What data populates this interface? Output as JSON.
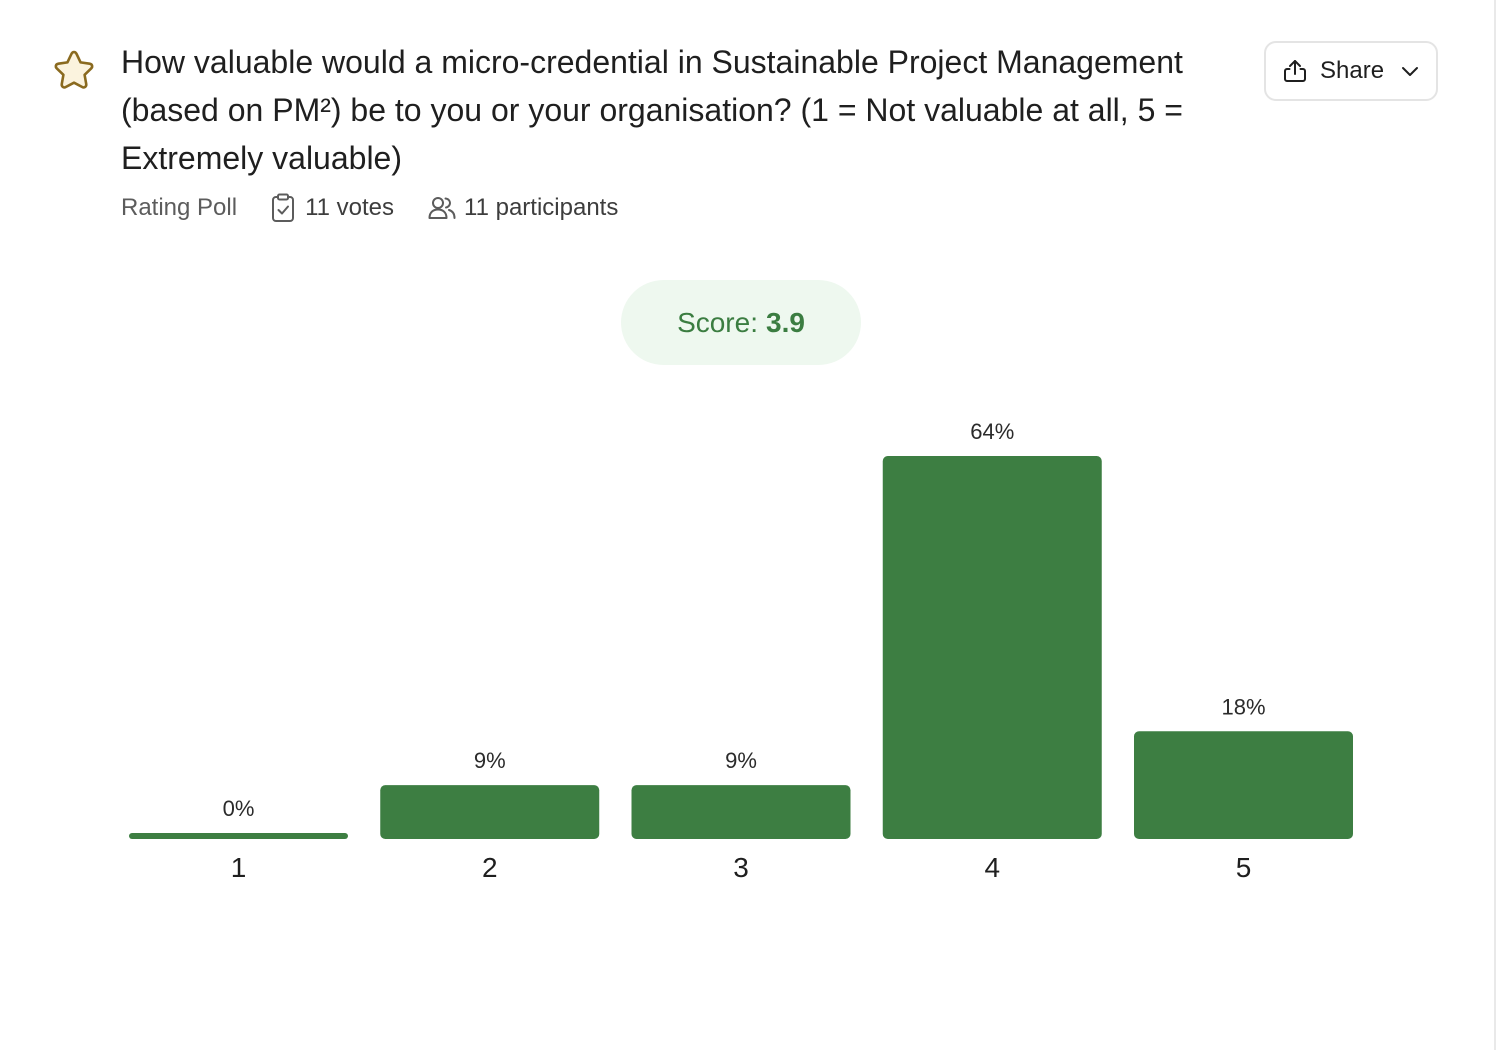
{
  "poll": {
    "title": "How valuable would a micro-credential in Sustainable Project Management (based on PM²) be to you or your organisation? (1 = Not valuable at all, 5 = Extremely valuable)",
    "type_label": "Rating Poll",
    "votes_label": "11 votes",
    "participants_label": "11 participants",
    "star_icon": "star-icon",
    "votes_icon": "clipboard-check-icon",
    "participants_icon": "users-icon"
  },
  "share": {
    "label": "Share",
    "icon": "share-icon",
    "chevron_icon": "chevron-down-icon"
  },
  "score": {
    "label": "Score:",
    "value": "3.9"
  },
  "colors": {
    "bar": "#3d7e42",
    "accent_star": "#8a6a1f",
    "badge_bg": "#eef8ef",
    "badge_text": "#3b7d41"
  },
  "chart_data": {
    "type": "bar",
    "categories": [
      "1",
      "2",
      "3",
      "4",
      "5"
    ],
    "values": [
      0,
      9,
      9,
      64,
      18
    ],
    "value_labels": [
      "0%",
      "9%",
      "9%",
      "64%",
      "18%"
    ],
    "ylim": [
      0,
      64
    ],
    "title": "",
    "xlabel": "",
    "ylabel": "",
    "grid": false
  }
}
